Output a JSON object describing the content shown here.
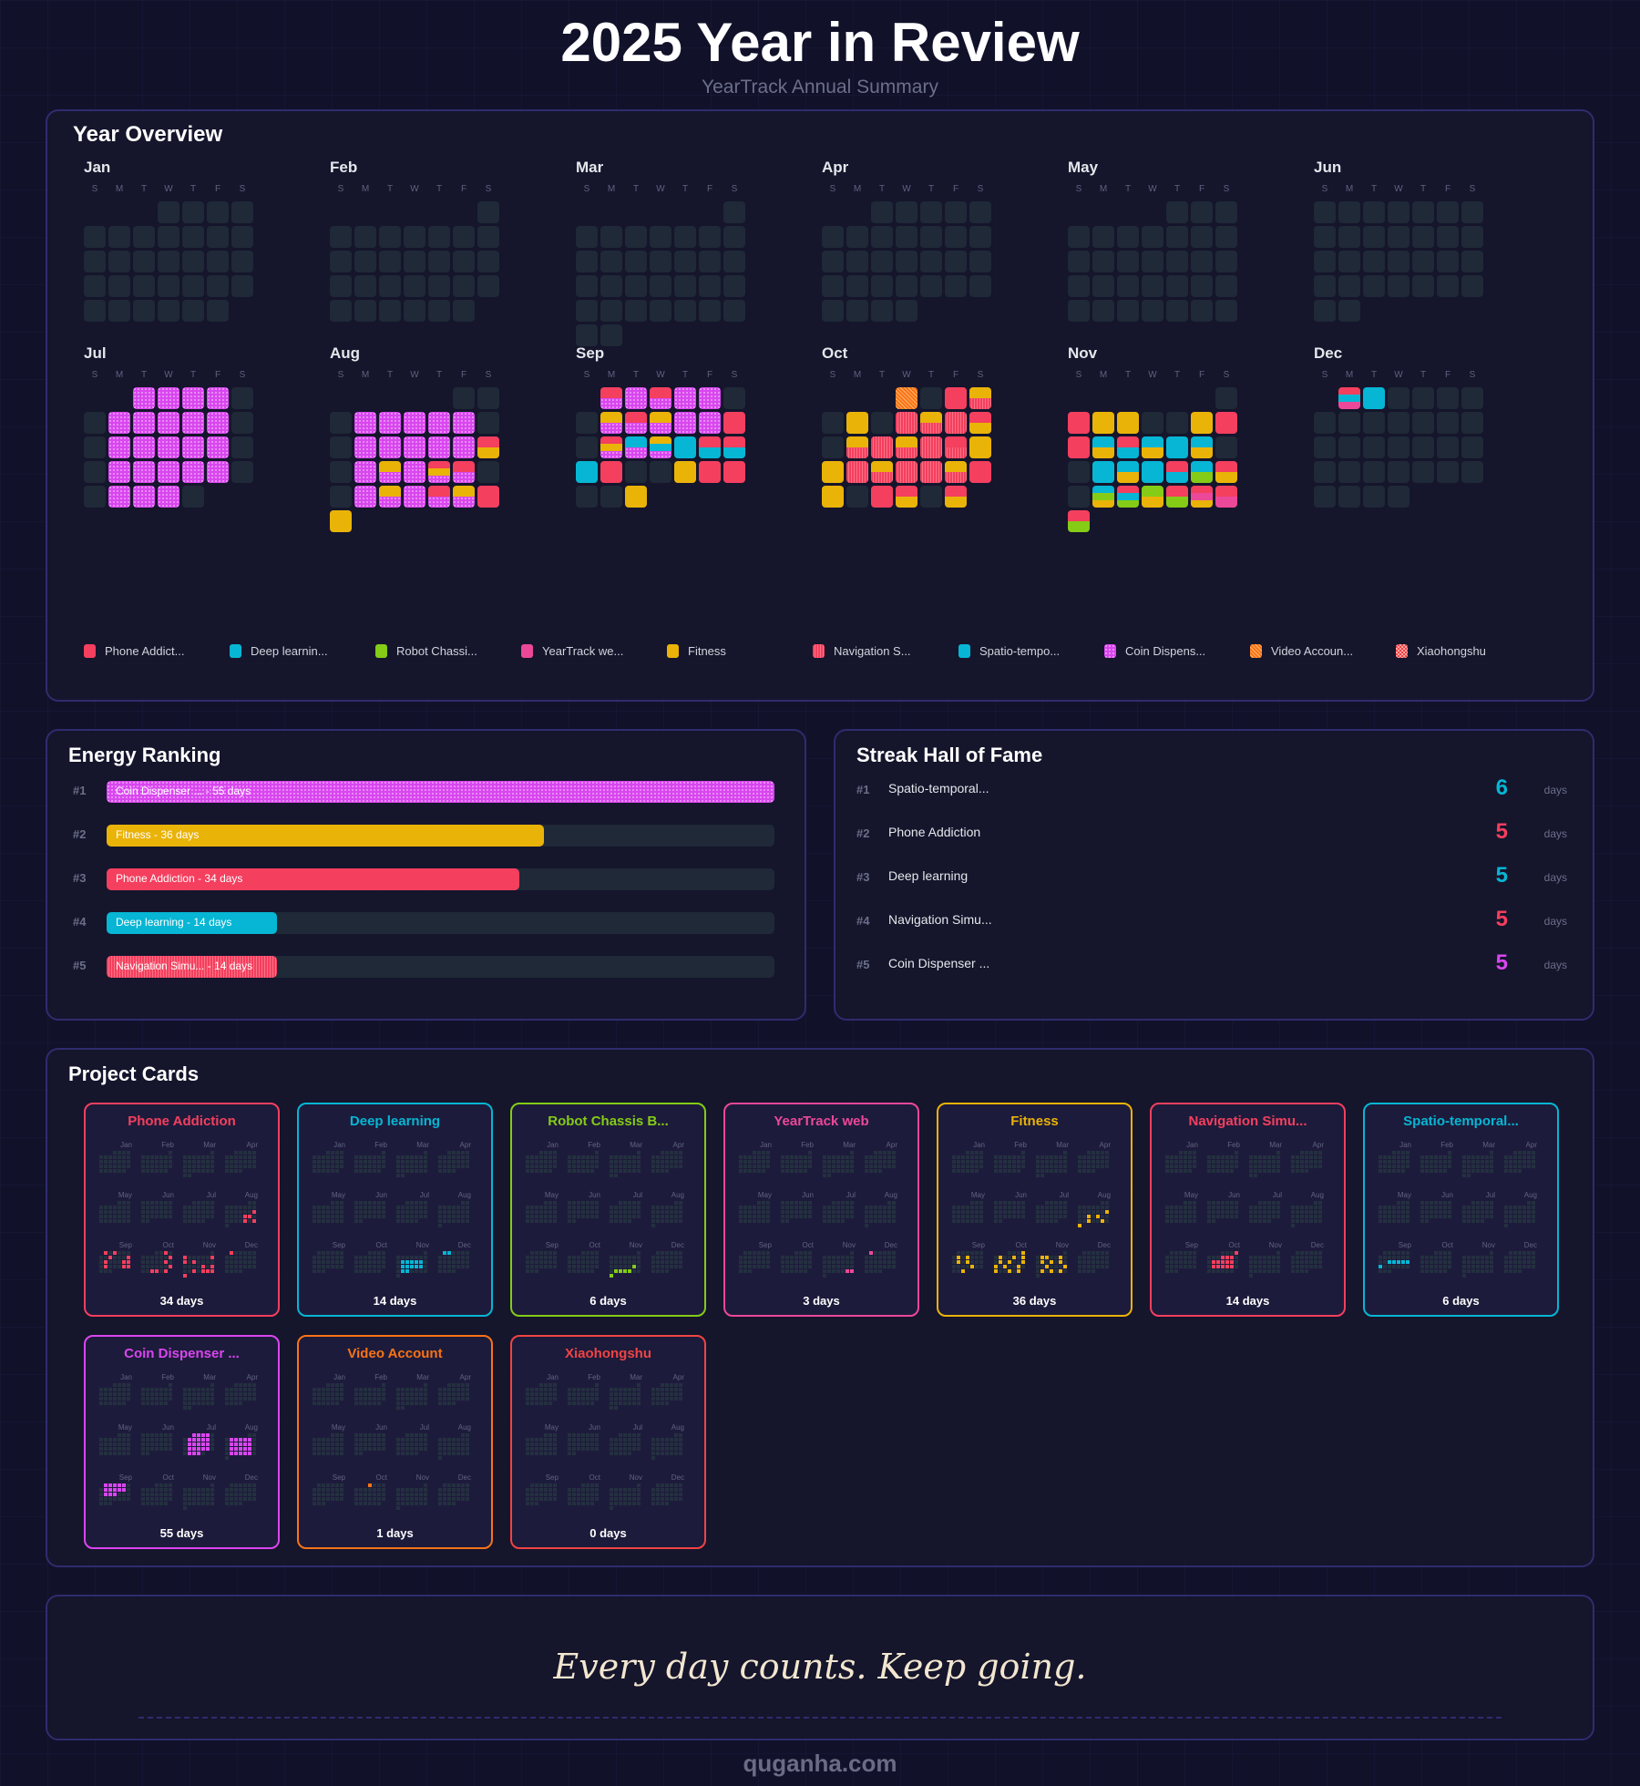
{
  "header": {
    "title": "2025 Year in Review",
    "subtitle": "YearTrack Annual Summary"
  },
  "year": 2025,
  "overview": {
    "title": "Year Overview"
  },
  "months": [
    "Jan",
    "Feb",
    "Mar",
    "Apr",
    "May",
    "Jun",
    "Jul",
    "Aug",
    "Sep",
    "Oct",
    "Nov",
    "Dec"
  ],
  "weekdays": [
    "S",
    "M",
    "T",
    "W",
    "T",
    "F",
    "S"
  ],
  "projects": [
    {
      "legend": "Phone Addict...",
      "card": "Phone Addiction",
      "color": "#f43f5e",
      "pattern": "solid",
      "days_label": "34 days"
    },
    {
      "legend": "Deep learnin...",
      "card": "Deep learning",
      "color": "#06b6d4",
      "pattern": "solid",
      "days_label": "14 days"
    },
    {
      "legend": "Robot Chassi...",
      "card": "Robot Chassis B...",
      "color": "#84cc16",
      "pattern": "solid",
      "days_label": "6 days"
    },
    {
      "legend": "YearTrack we...",
      "card": "YearTrack web",
      "color": "#ec4899",
      "pattern": "solid",
      "days_label": "3 days"
    },
    {
      "legend": "Fitness",
      "card": "Fitness",
      "color": "#eab308",
      "pattern": "solid",
      "days_label": "36 days"
    },
    {
      "legend": "Navigation S...",
      "card": "Navigation Simu...",
      "color": "#f43f5e",
      "pattern": "stripes",
      "days_label": "14 days"
    },
    {
      "legend": "Spatio-tempo...",
      "card": "Spatio-temporal...",
      "color": "#06b6d4",
      "pattern": "solid",
      "days_label": "6 days"
    },
    {
      "legend": "Coin Dispens...",
      "card": "Coin Dispenser ...",
      "color": "#d946ef",
      "pattern": "dots",
      "days_label": "55 days"
    },
    {
      "legend": "Video Accoun...",
      "card": "Video Account",
      "color": "#f97316",
      "pattern": "hatch",
      "days_label": "1 days"
    },
    {
      "legend": "Xiaohongshu",
      "card": "Xiaohongshu",
      "color": "#ef4444",
      "pattern": "checker",
      "days_label": "0 days"
    }
  ],
  "activity": {
    "7-1": [
      7
    ],
    "7-2": [
      7
    ],
    "7-3": [
      7
    ],
    "7-4": [
      7
    ],
    "7-7": [
      7
    ],
    "7-8": [
      7
    ],
    "7-9": [
      7
    ],
    "7-10": [
      7
    ],
    "7-11": [
      7
    ],
    "7-14": [
      7
    ],
    "7-15": [
      7
    ],
    "7-16": [
      7
    ],
    "7-17": [
      7
    ],
    "7-18": [
      7
    ],
    "7-21": [
      7
    ],
    "7-22": [
      7
    ],
    "7-23": [
      7
    ],
    "7-24": [
      7
    ],
    "7-25": [
      7
    ],
    "7-28": [
      7
    ],
    "7-29": [
      7
    ],
    "7-30": [
      7
    ],
    "8-4": [
      7
    ],
    "8-5": [
      7
    ],
    "8-6": [
      7
    ],
    "8-7": [
      7
    ],
    "8-8": [
      7
    ],
    "8-11": [
      7
    ],
    "8-12": [
      7
    ],
    "8-13": [
      7
    ],
    "8-14": [
      7
    ],
    "8-15": [
      7
    ],
    "8-16": [
      0,
      4
    ],
    "8-18": [
      7
    ],
    "8-19": [
      4,
      7
    ],
    "8-20": [
      7
    ],
    "8-21": [
      0,
      4,
      7
    ],
    "8-22": [
      0,
      7
    ],
    "8-25": [
      7
    ],
    "8-26": [
      4,
      7
    ],
    "8-27": [
      7
    ],
    "8-28": [
      0,
      7
    ],
    "8-29": [
      4,
      7
    ],
    "8-30": [
      0
    ],
    "8-31": [
      4
    ],
    "9-1": [
      0,
      7
    ],
    "9-2": [
      7
    ],
    "9-3": [
      0,
      7
    ],
    "9-4": [
      7
    ],
    "9-5": [
      7
    ],
    "9-8": [
      4,
      7
    ],
    "9-9": [
      0,
      7
    ],
    "9-10": [
      4,
      7
    ],
    "9-11": [
      7
    ],
    "9-12": [
      7
    ],
    "9-13": [
      0
    ],
    "9-15": [
      0,
      4,
      7
    ],
    "9-16": [
      6,
      7
    ],
    "9-17": [
      4,
      6,
      7
    ],
    "9-18": [
      6
    ],
    "9-19": [
      0,
      6
    ],
    "9-20": [
      0,
      6
    ],
    "9-21": [
      6
    ],
    "9-22": [
      0
    ],
    "9-25": [
      4
    ],
    "9-26": [
      0
    ],
    "9-27": [
      0
    ],
    "9-30": [
      4
    ],
    "10-1": [
      8
    ],
    "10-3": [
      0
    ],
    "10-4": [
      4,
      5
    ],
    "10-6": [
      4
    ],
    "10-8": [
      5
    ],
    "10-9": [
      4,
      5
    ],
    "10-10": [
      5
    ],
    "10-11": [
      0,
      4
    ],
    "10-13": [
      4,
      5
    ],
    "10-14": [
      5
    ],
    "10-15": [
      4,
      5
    ],
    "10-16": [
      5
    ],
    "10-17": [
      0,
      5
    ],
    "10-18": [
      4
    ],
    "10-19": [
      4
    ],
    "10-20": [
      5
    ],
    "10-21": [
      4,
      5
    ],
    "10-22": [
      5
    ],
    "10-23": [
      5
    ],
    "10-24": [
      4,
      5
    ],
    "10-25": [
      0
    ],
    "10-26": [
      4
    ],
    "10-28": [
      0
    ],
    "10-29": [
      0,
      4
    ],
    "10-31": [
      0,
      4
    ],
    "11-2": [
      0
    ],
    "11-3": [
      4
    ],
    "11-4": [
      4
    ],
    "11-7": [
      4
    ],
    "11-8": [
      0
    ],
    "11-9": [
      0
    ],
    "11-10": [
      1,
      4
    ],
    "11-11": [
      0,
      1
    ],
    "11-12": [
      1,
      4
    ],
    "11-13": [
      1
    ],
    "11-14": [
      1,
      4
    ],
    "11-17": [
      1
    ],
    "11-18": [
      1,
      4
    ],
    "11-19": [
      1
    ],
    "11-20": [
      0,
      1
    ],
    "11-21": [
      1,
      2
    ],
    "11-22": [
      0,
      4
    ],
    "11-24": [
      1,
      2,
      4
    ],
    "11-25": [
      0,
      1,
      2
    ],
    "11-26": [
      2,
      4
    ],
    "11-27": [
      0,
      2
    ],
    "11-28": [
      0,
      3,
      4
    ],
    "11-29": [
      0,
      3
    ],
    "11-30": [
      0,
      2
    ],
    "12-1": [
      0,
      1,
      3
    ],
    "12-2": [
      1
    ]
  },
  "energy": {
    "title": "Energy Ranking",
    "items": [
      {
        "rank": "#1",
        "label": "Coin Dispenser ... - 55 days",
        "project": 7,
        "value": 55
      },
      {
        "rank": "#2",
        "label": "Fitness - 36 days",
        "project": 4,
        "value": 36
      },
      {
        "rank": "#3",
        "label": "Phone Addiction - 34 days",
        "project": 0,
        "value": 34
      },
      {
        "rank": "#4",
        "label": "Deep learning - 14 days",
        "project": 1,
        "value": 14
      },
      {
        "rank": "#5",
        "label": "Navigation Simu... - 14 days",
        "project": 5,
        "value": 14
      }
    ],
    "max": 55
  },
  "streak": {
    "title": "Streak Hall of Fame",
    "unit": "days",
    "items": [
      {
        "rank": "#1",
        "name": "Spatio-temporal...",
        "value": "6",
        "color": "#06b6d4"
      },
      {
        "rank": "#2",
        "name": "Phone Addiction",
        "value": "5",
        "color": "#f43f5e"
      },
      {
        "rank": "#3",
        "name": "Deep learning",
        "value": "5",
        "color": "#06b6d4"
      },
      {
        "rank": "#4",
        "name": "Navigation Simu...",
        "value": "5",
        "color": "#f43f5e"
      },
      {
        "rank": "#5",
        "name": "Coin Dispenser ...",
        "value": "5",
        "color": "#d946ef"
      }
    ]
  },
  "cards": {
    "title": "Project Cards"
  },
  "footer": {
    "quote": "Every day counts. Keep going.",
    "site": "quganha.com"
  }
}
